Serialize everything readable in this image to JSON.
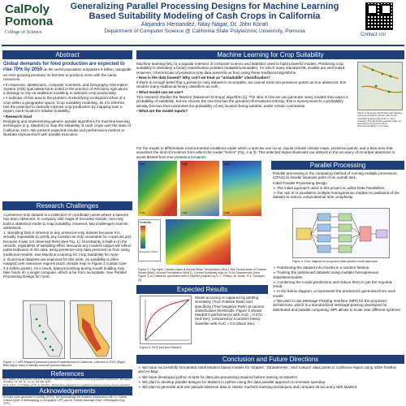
{
  "header": {
    "logo_cal": "CalPoly",
    "logo_pomona": "Pomona",
    "college": "College of Science",
    "title_line1": "Generalizing Parallel Processing Designs for Machine Learning",
    "title_line2": "Based Suitability Modeling of Cash Crops in California",
    "authors": "Alejandro Hernandez, Nilay Nagar, Dr. John Korah",
    "department": "Department of Computer Science @ California State Polytechnic University, Pomona",
    "contact": "Contact Us!"
  },
  "sections": {
    "abstract": "Abstract",
    "research_challenges": "Research Challenges",
    "references": "References",
    "acknowledgements": "Acknowledgements",
    "ml_suitability": "Machine Learning for Crop Suitability",
    "parallel_processing": "Parallel Processing",
    "expected_results": "Expected Results",
    "conclusion": "Conclusion and Future Directions"
  },
  "abstract": {
    "lead": "Global demands for food production are expected to rise 70% by 2050",
    "lead_rest": "as the world population surpasses 9 billion, alongside an ever-growing pressure on farmers to produce more with the same resources.",
    "b1": "In response, statisticians, computer scientists, and Geography Information System (GIS) specialists have united in the practice of Precision Agriculture, a strategy to rely on statistical modeling to optimize crop productivity.",
    "b2": "A subtopic of this area is the problem of identifying ecological niches of a crop within a geographic space. Crop suitability modeling, as it is referred, has the potential to radically improve crop production by mapping over a region, each location's relative suitability.",
    "b3": "Research Goal",
    "b3_rest": "Designing and implementing generic parallel algorithms for machine learning techniques (e.g. MaxEnt) to map the suitability of cash crops over the state of California, USA. We present expected results and performance metrics to illustrate improvement with parallel execution."
  },
  "challenges": {
    "p1": "A presence-only dataset is a collection of coordinate points where a species has been observed. In company with maps of recorded climate, one may build a statistical model to map suitability. However, two challenges must be addressed.",
    "p2": "1. Sampling bias is inherent to any presence-only dataset because it is virtually impossible to certify any location as truly unsuitable for a species just because it was not observed there (see Fig. 1). Uncertainty is built-in to the records, regardless of sampling effort. Because any model's output will reflect patterns/biases of the data, using presence-only data prevents us from using traditional models. See Machine Learning for Crop Suitability for more.",
    "p3": "2. Enormous datasets are expected for this work, as suitability is often mapped over extensive regions (each climate map in Figure 2 contain over 3.4 million pixels). As a result, data-processing during model building may take hours on a single computer, which is far from acceptable. See Parallel Processing Design for more.",
    "fig_caption": "Figure 1. CalFlr Mapped presence points of strawberries in California, collected in 2018 (Right) Bias region used to identify inbound pseudo-absence."
  },
  "references": {
    "r1": "[1] J. Phillips, R. P. Anderson, and R. E. Schapire. \"Maximum entropy modeling of species geographic distributions\", Ecological Modelling, vol. 190, no. 3-4, pp. 231-259, 2006.",
    "r2": "[2] M. Quinn, V. C. Phillips, and R. E. Schapire. \"Performance guarantees for regularized maximum entropy density estimation\", Learning Theory, vol. 3120 pp. 2004",
    "r3": "[3] Daniel T. Bibbat, Michelle Walkers, Robert D. Butchart. \"Inherent Network Difficult for modeling species' niches and distributions\", Methods in Ecology and Evolution, vol. 6, pp. 1183-1194, 2015."
  },
  "acknowledgements": {
    "text": "All maps were generated in ArcMap (ESRI). We acknowledge the research collaboration with Dr. Gabriel Granco (Dept. of Anthropology & Geography, CPP) and Dr. Subodh Bhandari (Dept. of Aerospace Eng., CPP)."
  },
  "ml": {
    "p1": "Machine learning (ML) is a popular intersect of computer science and statistics used to build powerful models. Predicting crop suitability is ultimately a binary classification problem (suitable/unsuitable), for which many standard ML models are well suited. However, inherent bias of presence-only data prevents us from using these traditional algorithms.",
    "q1": "How is the data biased? Why can't we treat as \"unsuitable\" classification?",
    "a1": "If there is enough belief that a presence-only dataset is incomplete, we cannot treat non-presence points as true absences; this renders many traditional binary classifiers as unfit.",
    "q2": "What model can we use?",
    "a2": "This research studies the MaxEnt (Maximum Entropy) algorithm [1]. The idea is that we can generate many models that output a probability of suitability; but we choose the one that has the greatest informational entropy; this is synonymous to a probability density function that maximizes the probability of any location being suitable, under certain constraints.",
    "q3": "What are the model inputs?",
    "a3": "For the model to differentiate environmental conditions under which a species can occur, inputs include climate maps, presence points, and a bias area that visualizes the limit of locations from which the model \"learns\" (Fig. 2 & 3). This selected region illustrates our distrust in the accuracy of recorded absences in areas distant from true presence locations.",
    "fig3_caption": "Figure 3. Example bioclimatic map displays presence locations (green) that are all restricted suspiciously close to rivers (orange). This illustrates sampling bias, as sub-regions of points in Fig 2 disproportionately in one area."
  },
  "figure2": {
    "panel_labels": [
      "High",
      "Low",
      "High",
      "Low",
      "High",
      "Low"
    ],
    "legend_title": "Suitability",
    "legend_item": "Presence Points",
    "caption": "Figure 2. (Top right) Climate maps of Annual Mean Temperature (Bio1), Min Temperature of Coldest Month (Bio6), Annual Precipitation (Bio12), Current Suitability map for 2018 Strawberries (from Figure 1) in California, generated with a MaxEnt program by S. J. Phillips, M. Dudik, R.E. Schapire [3]."
  },
  "parallel": {
    "p1": "Parallel processing is the computing method of running multiple processors (CPUs) to handle separate parts of an overall task.",
    "p2": "Initial Parallel Processing Design",
    "b1": "The initial approach used in this project is called Data Parallelism.",
    "b2": "Our aim is to parallelize multiple homogeneous models on partitions of the dataset to reduce computational time complexity.",
    "fig4_caption": "Figure 4. Flow diagram for proposed data parallel model approach",
    "b3": "Partitioning the dataset into chunks in a random fashion.",
    "b4": "Training the partitioned datasets using multiple homogeneous classifiers/models.",
    "b5": "Combining the model predictions and reduce them to get the required result.",
    "b6": "In the below diagram, w represents the predictions generated from each model.",
    "b7": "We plan to use Message Passing Interface (MPI) for the proposed architecture, which is a standardized message-passing developed for distributed and parallel computing. MPI allows to scale over different systems."
  },
  "results": {
    "p1": "Model accuracy is captured by plotting sensitivity (True Positive Rate) and specificity (True Negative Rate) at various classification thresholds. Figure 5 shows MaxEnt's performance with AUC = 0.872 (red line), compared to a random binary classifier with AUC = 0.5 (black line).",
    "fig5_caption": "Figure 5. ROC plot from MaxEnt"
  },
  "conclusion": {
    "b1": "We have successfully formulated initial MaxEnt based models for 'Grapes', 'Strawberries', and 'Lettuce' data points in California region using SDM ToolBox and ArcMap.",
    "b2": "We have developed python scripts for data pre-processing required before training on MaxEnt.",
    "b3": "We plan to develop parallel designs for MaxEnt in python using the data parallel approach to increase speedup.",
    "b4": "We plan to generate and use pseudo-absence data in classic machine learning techniques and compare its accuracy with MaxEnt."
  },
  "colors": {
    "primary": "#1e3f7a",
    "logo_green": "#1e4d2b"
  }
}
